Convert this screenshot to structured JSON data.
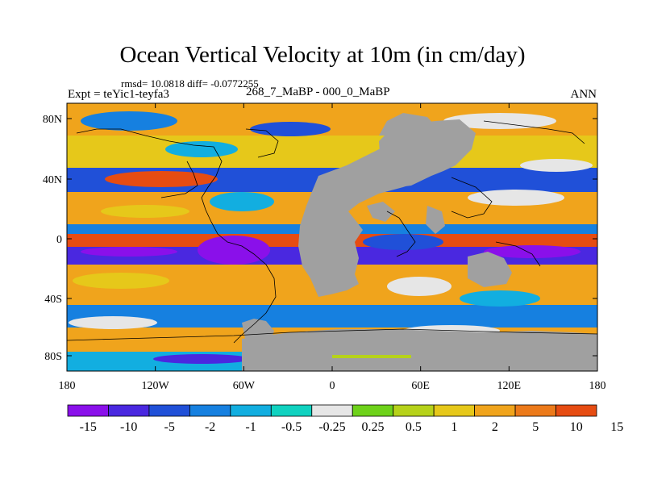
{
  "title": "Ocean Vertical Velocity at 10m (in cm/day)",
  "stats": "rmsd= 10.0818 diff= -0.0772255",
  "experiment": "Expt = teYic1-teyfa3",
  "comparison": "268_7_MaBP - 000_0_MaBP",
  "season": "ANN",
  "y_ticks": [
    "80N",
    "40N",
    "0",
    "40S",
    "80S"
  ],
  "x_ticks": [
    "180",
    "120W",
    "60W",
    "0",
    "60E",
    "120E",
    "180"
  ],
  "colorbar": {
    "labels": [
      "-15",
      "-10",
      "-5",
      "-2",
      "-1",
      "-0.5",
      "-0.25",
      "0.25",
      "0.5",
      "1",
      "2",
      "5",
      "10",
      "15"
    ],
    "colors": [
      "#8a10ea",
      "#4a28e0",
      "#2050d8",
      "#1680e0",
      "#12aee0",
      "#10d2c0",
      "#e6e6e6",
      "#6ed21a",
      "#b6d21a",
      "#e6c81a",
      "#f0a41c",
      "#ec7a1a",
      "#e64c12"
    ]
  },
  "land_color": "#a0a0a0",
  "chart_data": {
    "type": "heatmap",
    "variable": "Ocean Vertical Velocity at 10m",
    "units": "cm/day",
    "x_range": [
      -180,
      180
    ],
    "y_range": [
      -90,
      90
    ],
    "levels": [
      -15,
      -10,
      -5,
      -2,
      -1,
      -0.5,
      -0.25,
      0.25,
      0.5,
      1,
      2,
      5,
      10,
      15
    ]
  }
}
